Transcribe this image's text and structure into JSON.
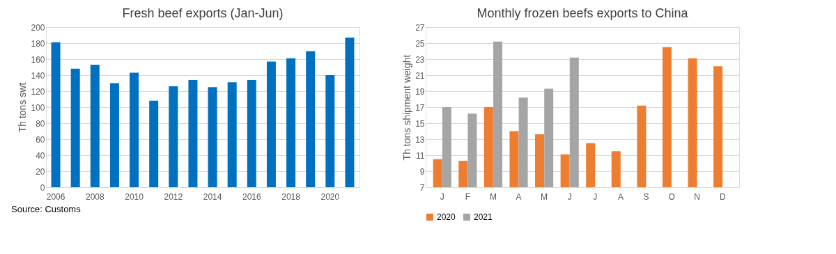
{
  "chart_data": [
    {
      "type": "bar",
      "title": "Fresh beef exports (Jan-Jun)",
      "ylabel": "Th tons swt",
      "categories": [
        "2006",
        null,
        "2008",
        null,
        "2010",
        null,
        "2012",
        null,
        "2014",
        null,
        "2016",
        null,
        "2018",
        null,
        "2020",
        null
      ],
      "series": [
        {
          "color": "#0070c0",
          "values": [
            181,
            148,
            153,
            130,
            143,
            108,
            126,
            134,
            125,
            131,
            134,
            157,
            161,
            170,
            140,
            187
          ]
        }
      ],
      "ylim": [
        0,
        200
      ],
      "yticks": [
        0,
        20,
        40,
        60,
        80,
        100,
        120,
        140,
        160,
        180,
        200
      ],
      "grid": "y",
      "legend": false,
      "annotations": [
        "Source: Customs"
      ]
    },
    {
      "type": "bar",
      "title": "Monthly frozen beefs exports to China",
      "ylabel": "Th tons shipment weight",
      "categories": [
        "J",
        "F",
        "M",
        "A",
        "M",
        "J",
        "J",
        "A",
        "S",
        "O",
        "N",
        "D"
      ],
      "series": [
        {
          "name": "2020",
          "color": "#ed7d31",
          "values": [
            10.5,
            10.3,
            17,
            14,
            13.6,
            11.1,
            12.5,
            11.5,
            17.2,
            24.5,
            23.1,
            22.1
          ]
        },
        {
          "name": "2021",
          "color": "#a5a5a5",
          "values": [
            17,
            16.2,
            25.2,
            18.2,
            19.3,
            23.2,
            null,
            null,
            null,
            null,
            null,
            null
          ]
        }
      ],
      "ylim": [
        7,
        27
      ],
      "yticks": [
        7,
        9,
        11,
        13,
        15,
        17,
        19,
        21,
        23,
        25,
        27
      ],
      "grid": "y",
      "legend": "bottom"
    }
  ]
}
